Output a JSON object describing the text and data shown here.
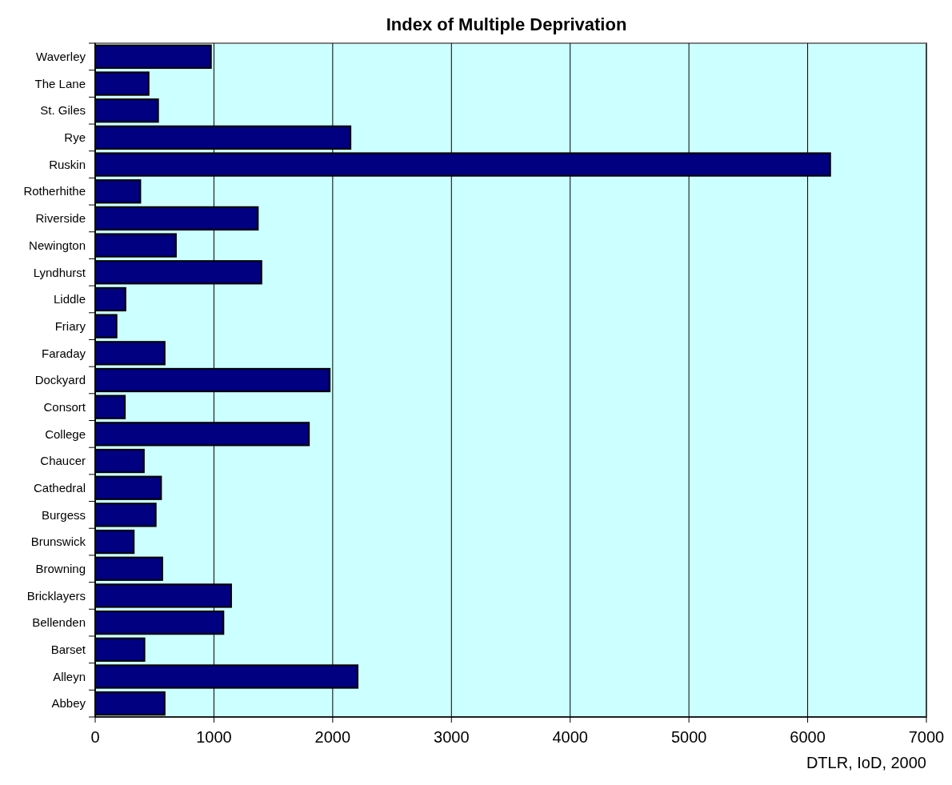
{
  "chart_data": {
    "type": "bar",
    "orientation": "horizontal",
    "title": "Index of Multiple Deprivation",
    "categories": [
      "Waverley",
      "The Lane",
      "St. Giles",
      "Rye",
      "Ruskin",
      "Rotherhithe",
      "Riverside",
      "Newington",
      "Lyndhurst",
      "Liddle",
      "Friary",
      "Faraday",
      "Dockyard",
      "Consort",
      "College",
      "Chaucer",
      "Cathedral",
      "Burgess",
      "Brunswick",
      "Browning",
      "Bricklayers",
      "Bellenden",
      "Barset",
      "Alleyn",
      "Abbey"
    ],
    "values": [
      975,
      450,
      530,
      2150,
      6190,
      380,
      1370,
      680,
      1400,
      255,
      180,
      585,
      1975,
      250,
      1800,
      410,
      555,
      510,
      325,
      565,
      1145,
      1080,
      415,
      2210,
      585
    ],
    "color": "#000080",
    "xlim": [
      0,
      7000
    ],
    "xticks": [
      0,
      1000,
      2000,
      3000,
      4000,
      5000,
      6000,
      7000
    ],
    "grid": "x",
    "annotations": [
      "DTLR, IoD, 2000"
    ]
  }
}
